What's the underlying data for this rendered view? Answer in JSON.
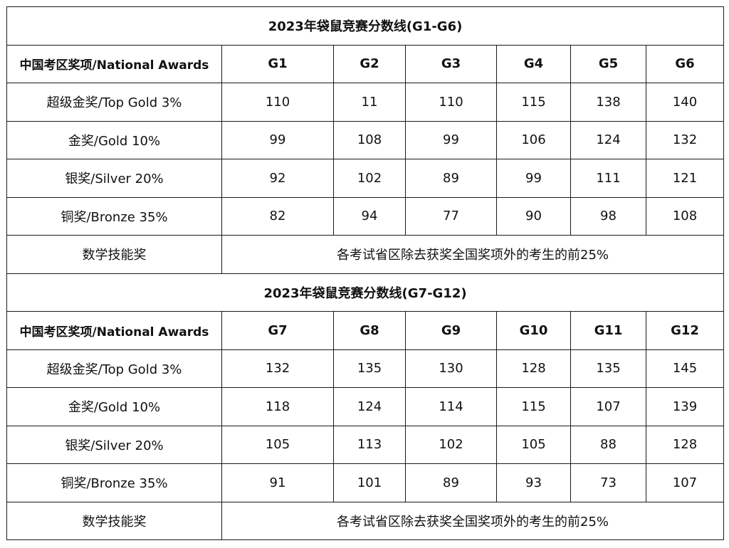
{
  "sections": [
    {
      "title": "2023年袋鼠竞赛分数线(G1-G6)",
      "header_label": "中国考区奖项/National Awards",
      "grades": [
        "G1",
        "G2",
        "G3",
        "G4",
        "G5",
        "G6"
      ],
      "rows": [
        {
          "award": "超级金奖/Top Gold 3%",
          "scores": [
            "110",
            "11",
            "110",
            "115",
            "138",
            "140"
          ]
        },
        {
          "award": "金奖/Gold 10%",
          "scores": [
            "99",
            "108",
            "99",
            "106",
            "124",
            "132"
          ]
        },
        {
          "award": "银奖/Silver 20%",
          "scores": [
            "92",
            "102",
            "89",
            "99",
            "111",
            "121"
          ]
        },
        {
          "award": "铜奖/Bronze 35%",
          "scores": [
            "82",
            "94",
            "77",
            "90",
            "98",
            "108"
          ]
        }
      ],
      "skill_award": {
        "label": "数学技能奖",
        "text": "各考试省区除去获奖全国奖项外的考生的前25%"
      }
    },
    {
      "title": "2023年袋鼠竞赛分数线(G7-G12)",
      "header_label": "中国考区奖项/National Awards",
      "grades": [
        "G7",
        "G8",
        "G9",
        "G10",
        "G11",
        "G12"
      ],
      "rows": [
        {
          "award": "超级金奖/Top Gold 3%",
          "scores": [
            "132",
            "135",
            "130",
            "128",
            "135",
            "145"
          ]
        },
        {
          "award": "金奖/Gold 10%",
          "scores": [
            "118",
            "124",
            "114",
            "115",
            "107",
            "139"
          ]
        },
        {
          "award": "银奖/Silver 20%",
          "scores": [
            "105",
            "113",
            "102",
            "105",
            "88",
            "128"
          ]
        },
        {
          "award": "铜奖/Bronze 35%",
          "scores": [
            "91",
            "101",
            "89",
            "93",
            "73",
            "107"
          ]
        }
      ],
      "skill_award": {
        "label": "数学技能奖",
        "text": "各考试省区除去获奖全国奖项外的考生的前25%"
      }
    }
  ]
}
